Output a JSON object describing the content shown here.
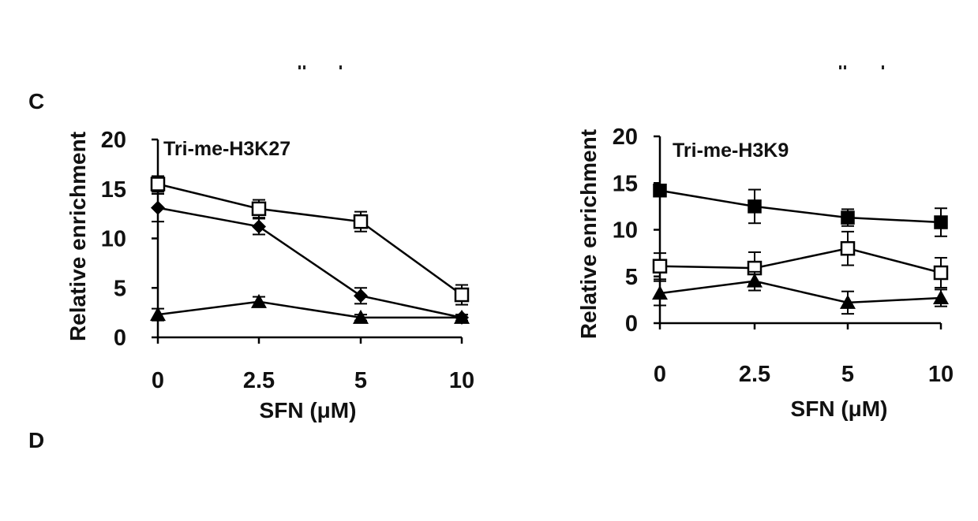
{
  "figure": {
    "panel_label": "C",
    "next_panel_label": "D"
  },
  "chart_data": [
    {
      "type": "line",
      "title": "Tri-me-H3K27",
      "xlabel": "SFN (μM)",
      "ylabel": "Relative enrichment",
      "categories": [
        "0",
        "2.5",
        "5",
        "10"
      ],
      "ylim": [
        0,
        20
      ],
      "yticks": [
        0,
        5,
        10,
        15,
        20
      ],
      "grid": false,
      "legend": "none",
      "series": [
        {
          "marker": "open-square",
          "color": "#000000",
          "values": [
            15.5,
            13.0,
            11.7,
            4.3
          ],
          "errors": [
            0.8,
            0.9,
            1.0,
            1.0
          ]
        },
        {
          "marker": "filled-diamond",
          "color": "#000000",
          "values": [
            13.1,
            11.2,
            4.2,
            2.0
          ],
          "errors": [
            1.4,
            0.8,
            0.8,
            0.3
          ]
        },
        {
          "marker": "filled-triangle",
          "color": "#000000",
          "values": [
            2.3,
            3.6,
            2.0,
            2.0
          ],
          "errors": [
            0.6,
            0.5,
            0.3,
            0.3
          ]
        }
      ]
    },
    {
      "type": "line",
      "title": "Tri-me-H3K9",
      "xlabel": "SFN (μM)",
      "ylabel": "Relative enrichment",
      "categories": [
        "0",
        "2.5",
        "5",
        "10"
      ],
      "ylim": [
        0,
        20
      ],
      "yticks": [
        0,
        5,
        10,
        15,
        20
      ],
      "grid": false,
      "legend": "none",
      "series": [
        {
          "marker": "filled-square",
          "color": "#000000",
          "values": [
            14.2,
            12.5,
            11.3,
            10.8
          ],
          "errors": [
            0.6,
            1.8,
            0.9,
            1.5
          ]
        },
        {
          "marker": "open-square",
          "color": "#000000",
          "values": [
            6.1,
            5.9,
            8.0,
            5.4
          ],
          "errors": [
            1.4,
            1.7,
            1.8,
            1.6
          ]
        },
        {
          "marker": "filled-triangle",
          "color": "#000000",
          "values": [
            3.2,
            4.5,
            2.2,
            2.7
          ],
          "errors": [
            1.3,
            1.0,
            1.2,
            0.9
          ]
        }
      ]
    }
  ]
}
